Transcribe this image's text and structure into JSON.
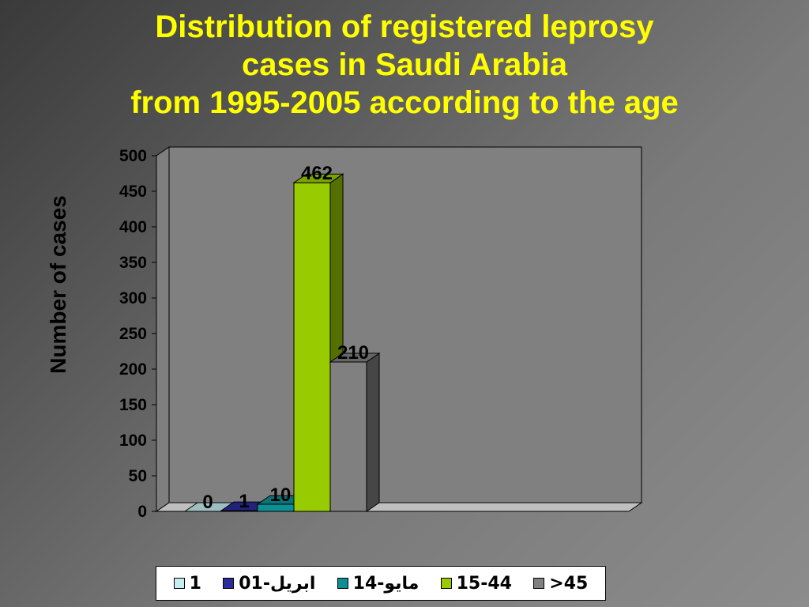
{
  "title_lines": [
    "Distribution of registered leprosy",
    "cases in Saudi Arabia",
    "from 1995-2005 according to the age"
  ],
  "chart_data": {
    "type": "bar",
    "title": "Distribution of registered leprosy cases in Saudi Arabia from 1995-2005 according to the age",
    "ylabel": "Number of cases",
    "ylim": [
      0,
      500
    ],
    "yticks": [
      0,
      50,
      100,
      150,
      200,
      250,
      300,
      350,
      400,
      450,
      500
    ],
    "series": [
      {
        "name": "1",
        "values": [
          0
        ],
        "color": "#c6eef2"
      },
      {
        "name": "01-ابريل",
        "values": [
          1
        ],
        "color": "#2b2b9a"
      },
      {
        "name": "14-مايو",
        "values": [
          10
        ],
        "color": "#0e8f96"
      },
      {
        "name": "15-44",
        "values": [
          462
        ],
        "color": "#99cc00"
      },
      {
        "name": ">45",
        "values": [
          210
        ],
        "color": "#808080"
      }
    ],
    "legend_position": "bottom",
    "style": "3d-clustered-column"
  }
}
